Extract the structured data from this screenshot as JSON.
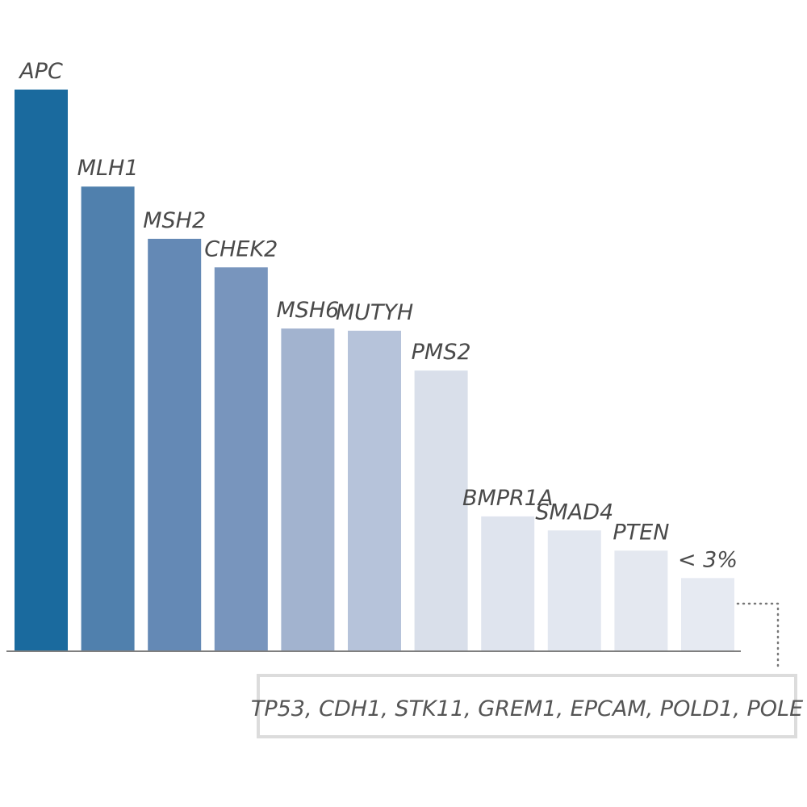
{
  "chart_data": {
    "type": "bar",
    "title": "",
    "xlabel": "",
    "ylabel": "",
    "categories": [
      "APC",
      "MLH1",
      "MSH2",
      "CHEK2",
      "MSH6",
      "MUTYH",
      "PMS2",
      "BMPR1A",
      "SMAD4",
      "PTEN",
      "< 3%"
    ],
    "values": [
      100,
      82.7,
      73.4,
      68.3,
      57.4,
      57.0,
      49.9,
      23.9,
      21.4,
      17.8,
      12.9
    ],
    "colors": [
      "#1a6a9e",
      "#5080ad",
      "#6489b5",
      "#7895bd",
      "#a2b3cf",
      "#b6c3da",
      "#d9dfea",
      "#dfe4ee",
      "#e2e7f0",
      "#e4e8f0",
      "#e6eaf2"
    ],
    "ylim": [
      0,
      100
    ],
    "grid": false,
    "axis_color": "#555555",
    "annotation": {
      "text": "TP53, CDH1, STK11, GREM1, EPCAM, POLD1, POLE",
      "target": "< 3%",
      "border_color": "#dcdcdc",
      "connector": "dotted"
    }
  }
}
